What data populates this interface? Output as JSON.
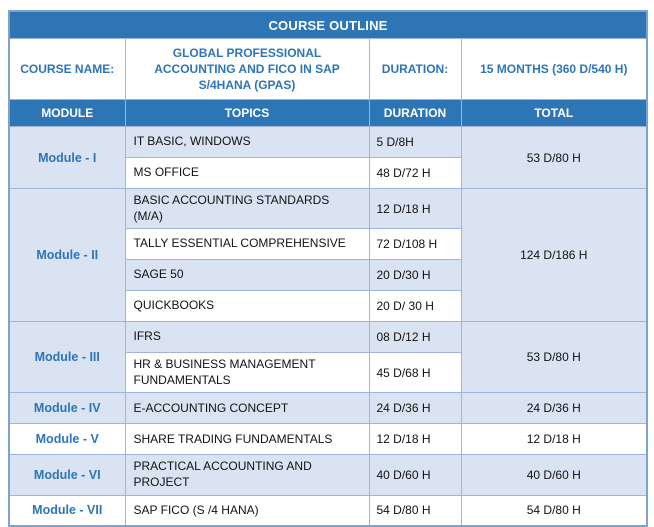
{
  "title": "COURSE OUTLINE",
  "course_info": {
    "name_label": "COURSE NAME:",
    "name_value": "GLOBAL PROFESSIONAL\nACCOUNTING AND FICO IN SAP\nS/4HANA (GPAS)",
    "duration_label": "DURATION:",
    "duration_value": "15 MONTHS (360 D/540 H)"
  },
  "columns": [
    "MODULE",
    "TOPICS",
    "DURATION",
    "TOTAL"
  ],
  "modules": [
    {
      "name": "Module - I",
      "total": "53 D/80 H",
      "topics": [
        {
          "topic": "IT BASIC, WINDOWS",
          "duration": "5 D/8H"
        },
        {
          "topic": "MS OFFICE",
          "duration": "48 D/72 H"
        }
      ]
    },
    {
      "name": "Module - II",
      "total": "124 D/186 H",
      "topics": [
        {
          "topic": "BASIC ACCOUNTING STANDARDS\n(M/A)",
          "duration": "12 D/18 H"
        },
        {
          "topic": "TALLY ESSENTIAL COMPREHENSIVE",
          "duration": "72 D/108 H"
        },
        {
          "topic": "SAGE 50",
          "duration": "20 D/30 H"
        },
        {
          "topic": "QUICKBOOKS",
          "duration": "20 D/ 30 H"
        }
      ]
    },
    {
      "name": "Module - III",
      "total": "53 D/80 H",
      "topics": [
        {
          "topic": "IFRS",
          "duration": "08 D/12 H"
        },
        {
          "topic": "HR & BUSINESS MANAGEMENT\nFUNDAMENTALS",
          "duration": "45 D/68 H"
        }
      ]
    },
    {
      "name": "Module - IV",
      "total": "24 D/36 H",
      "topics": [
        {
          "topic": "E-ACCOUNTING CONCEPT",
          "duration": "24 D/36 H"
        }
      ]
    },
    {
      "name": "Module - V",
      "total": "12 D/18 H",
      "topics": [
        {
          "topic": "SHARE TRADING FUNDAMENTALS",
          "duration": "12 D/18 H"
        }
      ]
    },
    {
      "name": "Module - VI",
      "total": "40 D/60 H",
      "topics": [
        {
          "topic": "PRACTICAL ACCOUNTING AND\nPROJECT",
          "duration": "40 D/60 H"
        }
      ]
    },
    {
      "name": "Module - VII",
      "total": "54 D/80 H",
      "topics": [
        {
          "topic": "SAP FICO (S /4 HANA)",
          "duration": "54 D/80 H"
        }
      ]
    }
  ],
  "colors": {
    "header_blue": "#2E75B6",
    "row_light_blue": "#D9E3F2",
    "border_blue": "#9EB5DB",
    "outer_border_blue": "#7FA3CF",
    "text_blue": "#2E75B6",
    "text_dark": "#111111"
  }
}
